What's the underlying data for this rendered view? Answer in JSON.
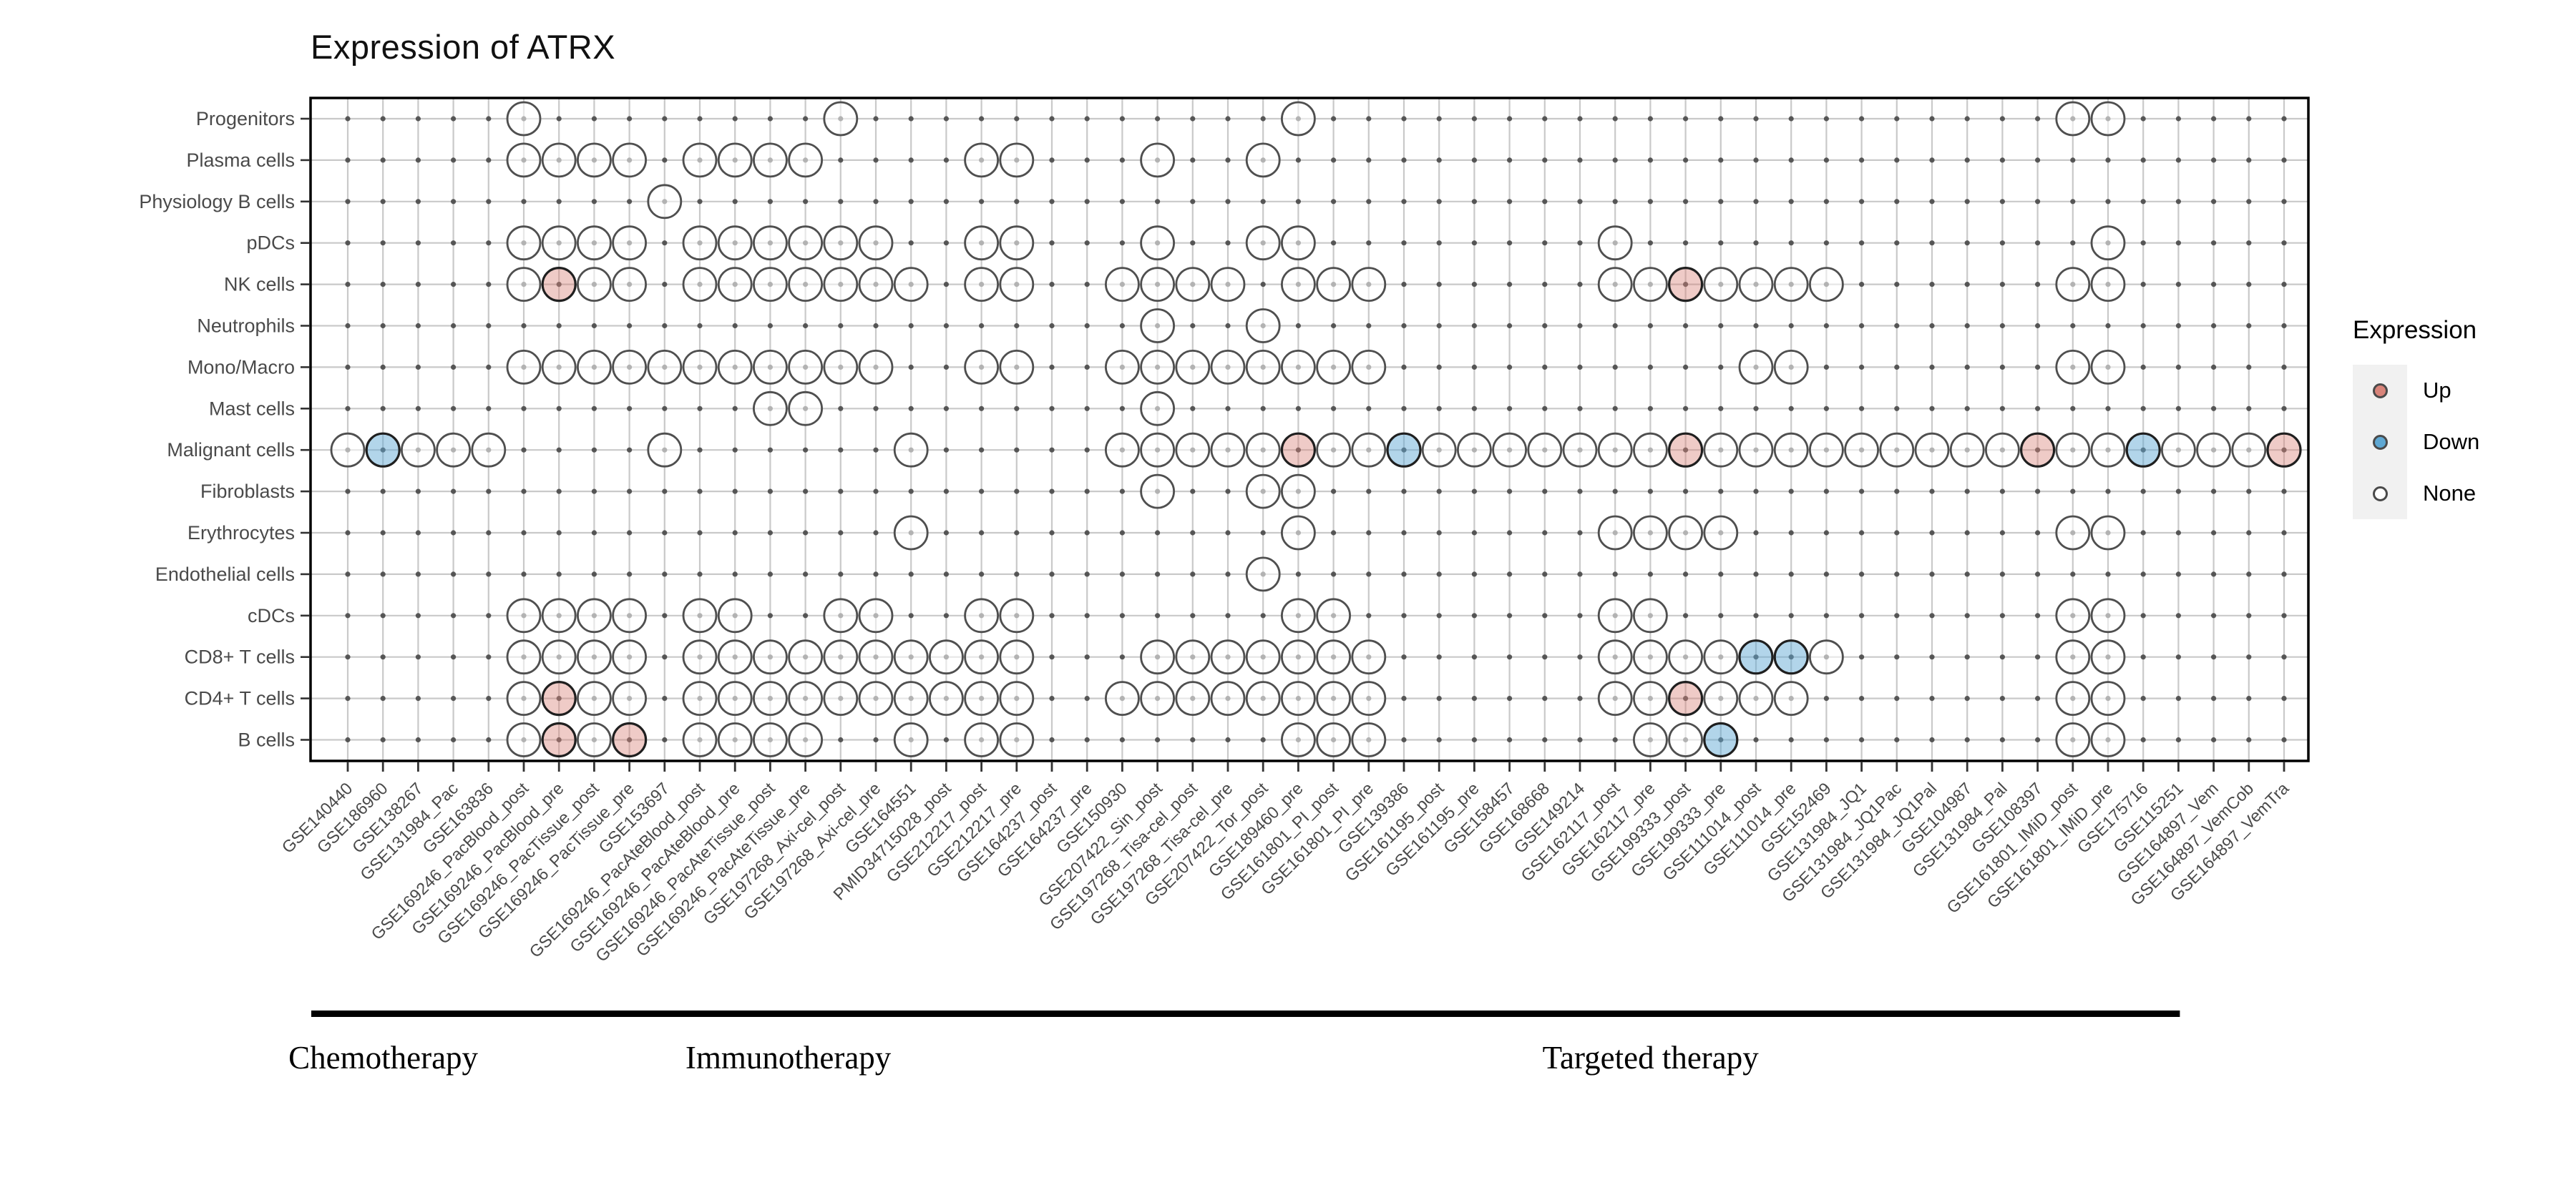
{
  "chart_data": {
    "type": "dot-matrix",
    "title": "Expression of ATRX",
    "ylabel": "",
    "xlabel": "",
    "grid": true,
    "legend": {
      "title": "Expression",
      "position": "right",
      "items": [
        {
          "label": "Up",
          "color": "#D9847A"
        },
        {
          "label": "Down",
          "color": "#5FA8D3"
        },
        {
          "label": "None",
          "color": "#FFFFFF"
        }
      ]
    },
    "rows": [
      "Progenitors",
      "Plasma cells",
      "Physiology B cells",
      "pDCs",
      "NK cells",
      "Neutrophils",
      "Mono/Macro",
      "Mast cells",
      "Malignant cells",
      "Fibroblasts",
      "Erythrocytes",
      "Endothelial cells",
      "cDCs",
      "CD8+ T cells",
      "CD4+ T cells",
      "B cells"
    ],
    "columns": [
      "GSE140440",
      "GSE186960",
      "GSE138267",
      "GSE131984_Pac",
      "GSE163836",
      "GSE169246_PacBlood_post",
      "GSE169246_PacBlood_pre",
      "GSE169246_PacTissue_post",
      "GSE169246_PacTissue_pre",
      "GSE153697",
      "GSE169246_PacAteBlood_post",
      "GSE169246_PacAteBlood_pre",
      "GSE169246_PacAteTissue_post",
      "GSE169246_PacAteTissue_pre",
      "GSE197268_Axi-cel_post",
      "GSE197268_Axi-cel_pre",
      "GSE164551",
      "PMID34715028_post",
      "GSE212217_post",
      "GSE212217_pre",
      "GSE164237_post",
      "GSE164237_pre",
      "GSE150930",
      "GSE207422_Sin_post",
      "GSE197268_Tisa-cel_post",
      "GSE197268_Tisa-cel_pre",
      "GSE207422_Tor_post",
      "GSE189460_pre",
      "GSE161801_PI_post",
      "GSE161801_PI_pre",
      "GSE139386",
      "GSE161195_post",
      "GSE161195_pre",
      "GSE158457",
      "GSE168668",
      "GSE149214",
      "GSE162117_post",
      "GSE162117_pre",
      "GSE199333_post",
      "GSE199333_pre",
      "GSE111014_post",
      "GSE111014_pre",
      "GSE152469",
      "GSE131984_JQ1",
      "GSE131984_JQ1Pac",
      "GSE131984_JQ1Pal",
      "GSE104987",
      "GSE131984_Pal",
      "GSE108397",
      "GSE161801_IMiD_post",
      "GSE161801_IMiD_pre",
      "GSE175716",
      "GSE115251",
      "GSE164897_Vem",
      "GSE164897_VemCob",
      "GSE164897_VemTra"
    ],
    "groups": [
      {
        "label": "Chemotherapy",
        "from_col": 1,
        "to_col": 4
      },
      {
        "label": "Immunotherapy",
        "from_col": 5,
        "to_col": 23
      },
      {
        "label": "Targeted therapy",
        "from_col": 24,
        "to_col": 53
      }
    ],
    "cells": {
      "Progenitors": {
        "up": [],
        "down": [],
        "none": [
          6,
          15,
          28,
          50,
          51
        ]
      },
      "Plasma cells": {
        "up": [],
        "down": [],
        "none": [
          6,
          7,
          8,
          9,
          11,
          12,
          13,
          14,
          19,
          20,
          24,
          27
        ]
      },
      "Physiology B cells": {
        "up": [],
        "down": [],
        "none": [
          10
        ]
      },
      "pDCs": {
        "up": [],
        "down": [],
        "none": [
          6,
          7,
          8,
          9,
          11,
          12,
          13,
          14,
          15,
          16,
          19,
          20,
          24,
          27,
          28,
          37,
          51
        ]
      },
      "NK cells": {
        "up": [
          7,
          39
        ],
        "down": [],
        "none": [
          6,
          8,
          9,
          11,
          12,
          13,
          14,
          15,
          16,
          17,
          19,
          20,
          23,
          24,
          25,
          26,
          28,
          29,
          30,
          37,
          38,
          40,
          41,
          42,
          43,
          50,
          51
        ]
      },
      "Neutrophils": {
        "up": [],
        "down": [],
        "none": [
          24,
          27
        ]
      },
      "Mono/Macro": {
        "up": [],
        "down": [],
        "none": [
          6,
          7,
          8,
          9,
          10,
          11,
          12,
          13,
          14,
          15,
          16,
          19,
          20,
          23,
          24,
          25,
          26,
          27,
          28,
          29,
          30,
          41,
          42,
          50,
          51
        ]
      },
      "Mast cells": {
        "up": [],
        "down": [],
        "none": [
          13,
          14,
          24
        ]
      },
      "Malignant cells": {
        "up": [
          28,
          39,
          49,
          56
        ],
        "down": [
          2,
          31,
          52
        ],
        "none": [
          1,
          3,
          4,
          5,
          10,
          17,
          23,
          24,
          25,
          26,
          27,
          29,
          30,
          32,
          33,
          34,
          35,
          36,
          37,
          38,
          40,
          41,
          42,
          43,
          44,
          45,
          46,
          47,
          48,
          50,
          51,
          53,
          54,
          55
        ]
      },
      "Fibroblasts": {
        "up": [],
        "down": [],
        "none": [
          24,
          27,
          28
        ]
      },
      "Erythrocytes": {
        "up": [],
        "down": [],
        "none": [
          17,
          28,
          37,
          38,
          39,
          40,
          50,
          51
        ]
      },
      "Endothelial cells": {
        "up": [],
        "down": [],
        "none": [
          27
        ]
      },
      "cDCs": {
        "up": [],
        "down": [],
        "none": [
          6,
          7,
          8,
          9,
          11,
          12,
          15,
          16,
          19,
          20,
          28,
          29,
          37,
          38,
          50,
          51
        ]
      },
      "CD8+ T cells": {
        "up": [],
        "down": [
          41,
          42
        ],
        "none": [
          6,
          7,
          8,
          9,
          11,
          12,
          13,
          14,
          15,
          16,
          17,
          18,
          19,
          20,
          24,
          25,
          26,
          27,
          28,
          29,
          30,
          37,
          38,
          39,
          40,
          43,
          50,
          51
        ]
      },
      "CD4+ T cells": {
        "up": [
          7,
          39
        ],
        "down": [],
        "none": [
          6,
          8,
          9,
          11,
          12,
          13,
          14,
          15,
          16,
          17,
          18,
          19,
          20,
          23,
          24,
          25,
          26,
          27,
          28,
          29,
          30,
          37,
          38,
          40,
          41,
          42,
          50,
          51
        ]
      },
      "B cells": {
        "up": [
          7,
          9
        ],
        "down": [
          40
        ],
        "none": [
          6,
          8,
          11,
          12,
          13,
          14,
          17,
          19,
          20,
          28,
          29,
          30,
          38,
          39,
          50,
          51
        ]
      }
    },
    "colors": {
      "up_fill": "#D9847A",
      "down_fill": "#5FA8D3",
      "none_fill": "#FFFFFF",
      "grid": "#C9C9C9",
      "point_dot": "#3F3F3F",
      "circle_stroke": "#4F4F4F",
      "accent_stroke": "#1F1F1F",
      "axis_text": "#4A4A4A",
      "panel_border": "#000000"
    }
  }
}
